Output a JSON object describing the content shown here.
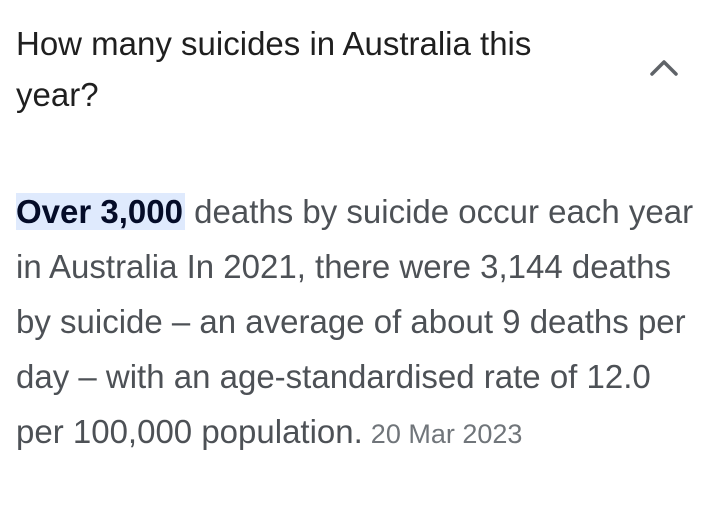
{
  "question": "How many suicides in Australia this year?",
  "answer": {
    "highlight": "Over 3,000",
    "text": " deaths by suicide occur each year in Australia In 2021, there were 3,144 deaths by suicide – an average of about 9 deaths per day – with an age-standardised rate of 12.0 per 100,000 population.",
    "date": "20 Mar 2023"
  },
  "icons": {
    "toggle": "chevron-up-icon"
  },
  "colors": {
    "highlight_bg": "#dfeafd",
    "highlight_text": "#040c28"
  }
}
